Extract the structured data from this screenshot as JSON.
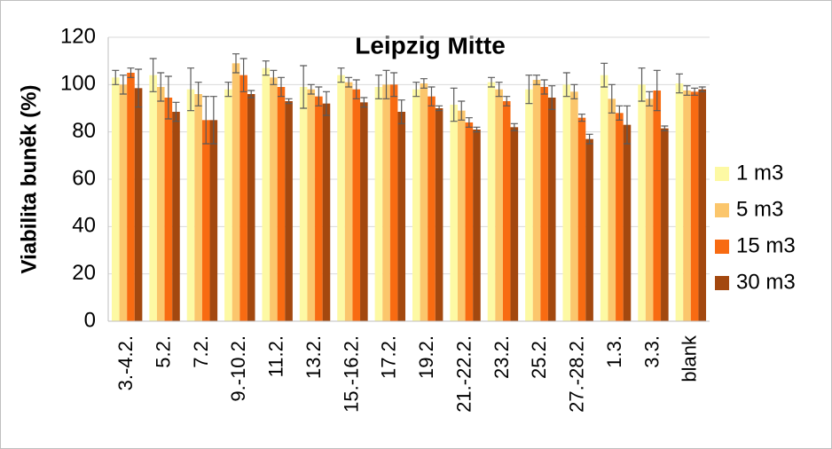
{
  "chart_data": {
    "type": "bar",
    "title": "Leipzig Mitte",
    "y_label": "Viabilita buněk (%)",
    "categories": [
      "3.-4.2.",
      "5.2.",
      "7.2.",
      "9.-10.2.",
      "11.2.",
      "13.2.",
      "15.-16.2.",
      "17.2.",
      "19.2.",
      "21.-22.2.",
      "23.2.",
      "25.2.",
      "27.-28.2.",
      "1.3.",
      "3.3.",
      "blank"
    ],
    "series": [
      {
        "name": "1 m3",
        "color": "#fdf9a4",
        "values": [
          103,
          104,
          98,
          98,
          107,
          99,
          104,
          99,
          98,
          91.5,
          101,
          98,
          100,
          104,
          100,
          100.5
        ],
        "errors": [
          3,
          7,
          9,
          3,
          3,
          9,
          3,
          5,
          3,
          7,
          2,
          6,
          5,
          5,
          7,
          4
        ]
      },
      {
        "name": "5 m3",
        "color": "#fbc66c",
        "values": [
          100,
          99,
          96,
          109,
          103,
          98,
          101,
          100,
          100.5,
          89,
          98,
          102,
          97,
          94,
          94,
          97.5
        ],
        "errors": [
          4,
          6,
          5,
          4,
          3,
          2,
          2,
          6,
          2,
          4,
          3,
          2,
          3,
          6,
          3,
          2
        ]
      },
      {
        "name": "15 m3",
        "color": "#f86b12",
        "values": [
          105,
          94.5,
          85,
          104,
          99,
          95,
          98,
          100,
          95,
          84,
          93,
          99,
          86,
          88,
          97.5,
          97
        ],
        "errors": [
          2,
          9,
          10,
          7,
          4,
          4,
          4,
          5,
          4,
          2,
          2,
          3,
          1.5,
          3,
          8.5,
          1.5
        ]
      },
      {
        "name": "30 m3",
        "color": "#a3480f",
        "values": [
          98.5,
          88.5,
          85,
          96,
          93,
          92,
          92.5,
          88.5,
          90,
          81,
          82,
          94.5,
          77,
          83,
          81.5,
          98
        ],
        "errors": [
          8,
          4,
          10,
          1.5,
          1,
          5,
          2,
          5,
          1,
          1,
          1.5,
          5,
          2,
          8,
          1,
          1
        ]
      }
    ],
    "ylim": [
      0,
      120
    ],
    "yticks": [
      0,
      20,
      40,
      60,
      80,
      100,
      120
    ],
    "grid": true
  }
}
